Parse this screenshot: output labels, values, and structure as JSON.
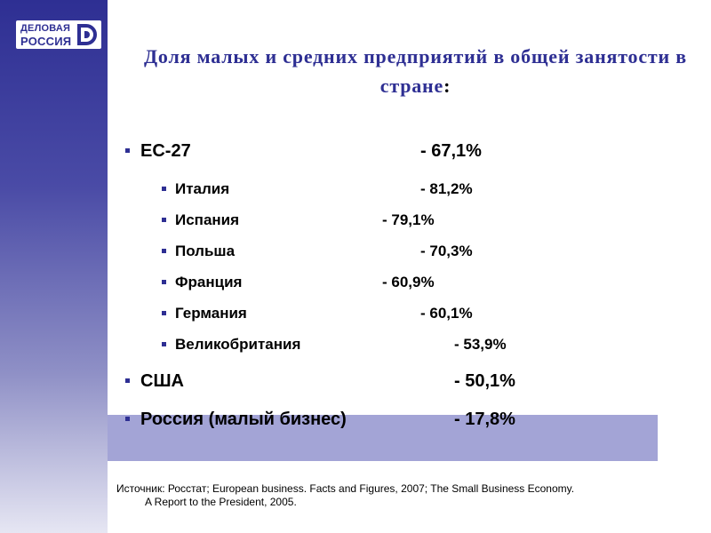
{
  "logo": {
    "line1": "ДЕЛОВАЯ",
    "line2": "РОССИЯ"
  },
  "title": {
    "text": "Доля малых и средних предприятий в общей занятости в стране",
    "marker": ":"
  },
  "rows": [
    {
      "label": "ЕС-27",
      "value": "- 67,1%"
    },
    {
      "label": "Италия",
      "value": "- 81,2%"
    },
    {
      "label": "Испания",
      "value": "- 79,1%"
    },
    {
      "label": "Польша",
      "value": "- 70,3%"
    },
    {
      "label": "Франция",
      "value": "- 60,9%"
    },
    {
      "label": "Германия",
      "value": "- 60,1%"
    },
    {
      "label": "Великобритания",
      "value": "- 53,9%"
    },
    {
      "label": "США",
      "value": "- 50,1%"
    },
    {
      "label": "Россия (малый бизнес)",
      "value": "- 17,8%"
    }
  ],
  "source": {
    "line1": "Источник: Росстат; European business. Facts and Figures, 2007; The Small Business Economy.",
    "line2": "A Report to the President, 2005."
  },
  "colors": {
    "accent": "#2e2f93",
    "highlight": "#a3a4d6"
  }
}
